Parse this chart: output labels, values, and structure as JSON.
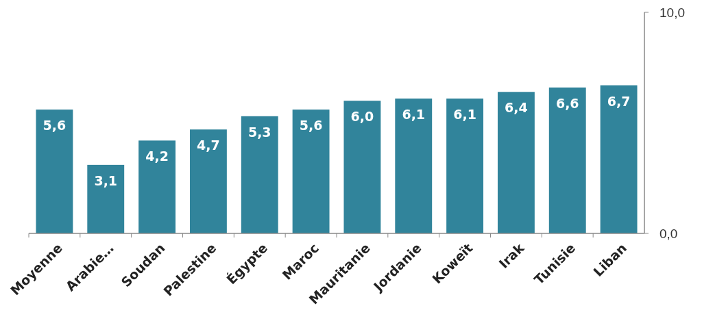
{
  "chart_data": {
    "type": "bar",
    "categories": [
      "Moyenne",
      "Arabie…",
      "Soudan",
      "Palestine",
      "Égypte",
      "Maroc",
      "Mauritanie",
      "Jordanie",
      "Koweït",
      "Irak",
      "Tunisie",
      "Liban"
    ],
    "values": [
      5.6,
      3.1,
      4.2,
      4.7,
      5.3,
      5.6,
      6.0,
      6.1,
      6.1,
      6.4,
      6.6,
      6.7
    ],
    "value_labels": [
      "5,6",
      "3,1",
      "4,2",
      "4,7",
      "5,3",
      "5,6",
      "6,0",
      "6,1",
      "6,1",
      "6,4",
      "6,6",
      "6,7"
    ],
    "color": "#31849b",
    "ylim": [
      0,
      10
    ],
    "yticks": [
      {
        "value": 0,
        "label": "0,0"
      },
      {
        "value": 10,
        "label": "10,0"
      }
    ],
    "grid": false
  }
}
